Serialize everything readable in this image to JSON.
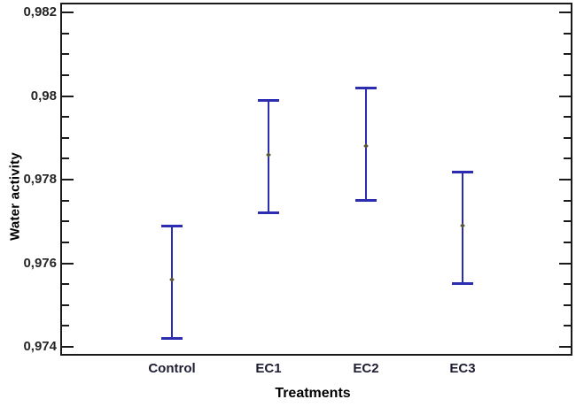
{
  "chart_data": {
    "type": "scatter",
    "subtype": "means-with-error-bars",
    "title": "",
    "xlabel": "Treatments",
    "ylabel": "Water activity",
    "categories": [
      "Control",
      "EC1",
      "EC2",
      "EC3"
    ],
    "series": [
      {
        "name": "Water activity",
        "means": [
          0.9756,
          0.9786,
          0.9788,
          0.9769
        ],
        "upper": [
          0.9769,
          0.9799,
          0.9802,
          0.9782
        ],
        "lower": [
          0.9742,
          0.9772,
          0.9775,
          0.9755
        ]
      }
    ],
    "ylim": [
      0.974,
      0.982
    ],
    "y_major_step": 0.002,
    "y_minor_step": 0.0005,
    "y_tick_labels": [
      "0,974",
      "0,976",
      "0,978",
      "0,98",
      "0,982"
    ],
    "decimal_separator": ",",
    "grid": false,
    "legend": "none",
    "colors": {
      "error_bar": "#2c2cb0",
      "mean_marker": "#56563a",
      "frame": "#1a1a1a",
      "tick_label": "#262626",
      "axis_label": "#1d1d33"
    }
  }
}
